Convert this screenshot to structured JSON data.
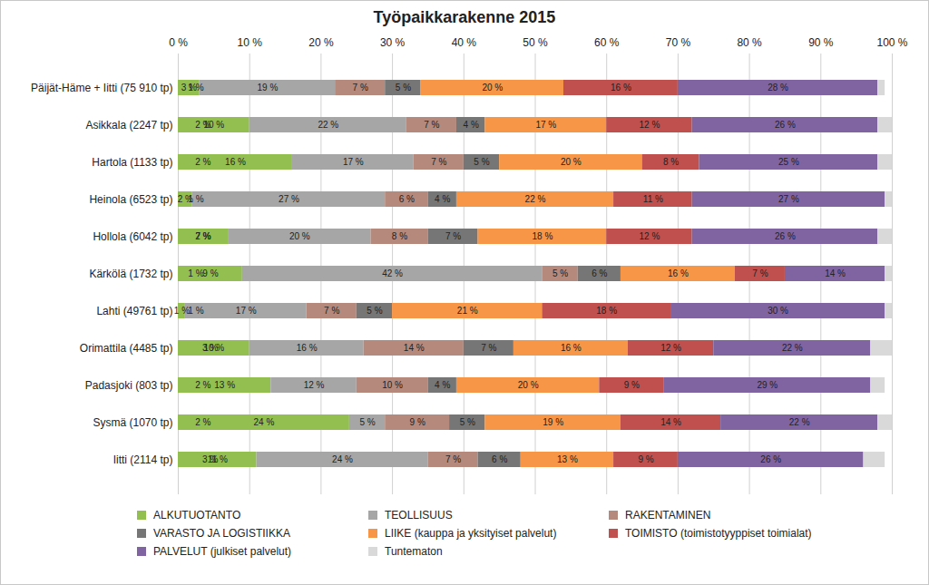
{
  "chart_data": {
    "type": "bar",
    "title": "Työpaikkarakenne 2015",
    "orientation": "horizontal",
    "stacked": true,
    "data_labels": true,
    "grid": true,
    "legend": "bottom",
    "categories": [
      "Päijät-Häme + Iitti (75 910 tp)",
      "Asikkala (2247 tp)",
      "Hartola (1133 tp)",
      "Heinola (6523 tp)",
      "Hollola (6042 tp)",
      "Kärkölä (1732 tp)",
      "Lahti (49761 tp)",
      "Orimattila (4485 tp)",
      "Padasjoki (803 tp)",
      "Sysmä (1070 tp)",
      "Iitti (2114 tp)"
    ],
    "xlim": [
      0,
      100
    ],
    "xticks": [
      {
        "value": 0,
        "label": "0 %"
      },
      {
        "value": 10,
        "label": "10 %"
      },
      {
        "value": 20,
        "label": "20 %"
      },
      {
        "value": 30,
        "label": "30 %"
      },
      {
        "value": 40,
        "label": "40 %"
      },
      {
        "value": 50,
        "label": "50 %"
      },
      {
        "value": 60,
        "label": "60 %"
      },
      {
        "value": 70,
        "label": "70 %"
      },
      {
        "value": 80,
        "label": "80 %"
      },
      {
        "value": 90,
        "label": "90 %"
      },
      {
        "value": 100,
        "label": "100 %"
      }
    ],
    "series": [
      {
        "name": "ALKUTUOTANTO",
        "color": "#92bf50",
        "values": [
          3,
          10,
          16,
          2,
          7,
          9,
          1,
          10,
          13,
          24,
          11
        ],
        "value_labels": [
          "3 %",
          "10 %",
          "16 %",
          "2 %",
          "7 %",
          "9 %",
          "1 %",
          "10 %",
          "13 %",
          "24 %",
          "11 %"
        ]
      },
      {
        "name": "TEOLLISUUS",
        "color": "#a6a6a6",
        "values": [
          19,
          22,
          17,
          27,
          20,
          42,
          17,
          16,
          12,
          5,
          24
        ],
        "value_labels": [
          "19 %",
          "22 %",
          "17 %",
          "27 %",
          "20 %",
          "42 %",
          "17 %",
          "16 %",
          "12 %",
          "5 %",
          "24 %"
        ]
      },
      {
        "name": "RAKENTAMINEN",
        "color": "#b5897c",
        "values": [
          7,
          7,
          7,
          6,
          8,
          5,
          7,
          14,
          10,
          9,
          7
        ],
        "value_labels": [
          "7 %",
          "7 %",
          "7 %",
          "6 %",
          "8 %",
          "5 %",
          "7 %",
          "14 %",
          "10 %",
          "9 %",
          "7 %"
        ]
      },
      {
        "name": "VARASTO JA LOGISTIIKKA",
        "color": "#767676",
        "values": [
          5,
          4,
          5,
          4,
          7,
          6,
          5,
          7,
          4,
          5,
          6
        ],
        "value_labels": [
          "5 %",
          "4 %",
          "5 %",
          "4 %",
          "7 %",
          "6 %",
          "5 %",
          "7 %",
          "4 %",
          "5 %",
          "6 %"
        ]
      },
      {
        "name": "LIIKE (kauppa ja yksityiset palvelut)",
        "color": "#f79646",
        "values": [
          20,
          17,
          20,
          22,
          18,
          16,
          21,
          16,
          20,
          19,
          13
        ],
        "value_labels": [
          "20 %",
          "17 %",
          "20 %",
          "22 %",
          "18 %",
          "16 %",
          "21 %",
          "16 %",
          "20 %",
          "19 %",
          "13 %"
        ]
      },
      {
        "name": "TOIMISTO (toimistotyyppiset toimialat)",
        "color": "#c0504d",
        "values": [
          16,
          12,
          8,
          11,
          12,
          7,
          18,
          12,
          9,
          14,
          9
        ],
        "value_labels": [
          "16 %",
          "12 %",
          "8 %",
          "11 %",
          "12 %",
          "7 %",
          "18 %",
          "12 %",
          "9 %",
          "14 %",
          "9 %"
        ]
      },
      {
        "name": "PALVELUT (julkiset palvelut)",
        "color": "#8064a2",
        "values": [
          28,
          26,
          25,
          27,
          26,
          14,
          30,
          22,
          29,
          22,
          26
        ],
        "value_labels": [
          "28 %",
          "26 %",
          "25 %",
          "27 %",
          "26 %",
          "14 %",
          "30 %",
          "22 %",
          "29 %",
          "22 %",
          "26 %"
        ]
      },
      {
        "name": "Tuntematon",
        "color": "#d9d9d9",
        "values": [
          1,
          2,
          2,
          1,
          2,
          1,
          1,
          3,
          2,
          2,
          3
        ],
        "value_labels": [
          "1 %",
          "2 %",
          "2 %",
          "1 %",
          "2 %",
          "1 %",
          "1 %",
          "3 %",
          "2 %",
          "2 %",
          "3 %"
        ]
      }
    ]
  }
}
